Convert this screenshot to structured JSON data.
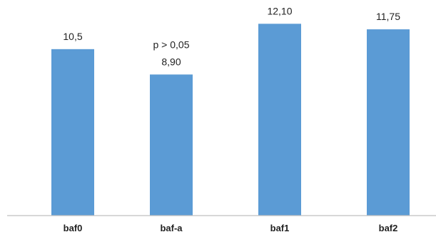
{
  "chart_data": {
    "type": "bar",
    "title": "",
    "xlabel": "",
    "ylabel": "",
    "categories": [
      "baf0",
      "baf-a",
      "baf1",
      "baf2"
    ],
    "values": [
      10.5,
      8.9,
      12.1,
      11.75
    ],
    "data_labels": [
      "10,5",
      "8,90",
      "12,10",
      "11,75"
    ],
    "ylim": [
      0,
      13.6
    ],
    "grid": false,
    "legend": "none",
    "bar_color": "#5b9bd5",
    "annotations": [
      {
        "category": "baf-a",
        "text": "p > 0,05"
      }
    ]
  }
}
